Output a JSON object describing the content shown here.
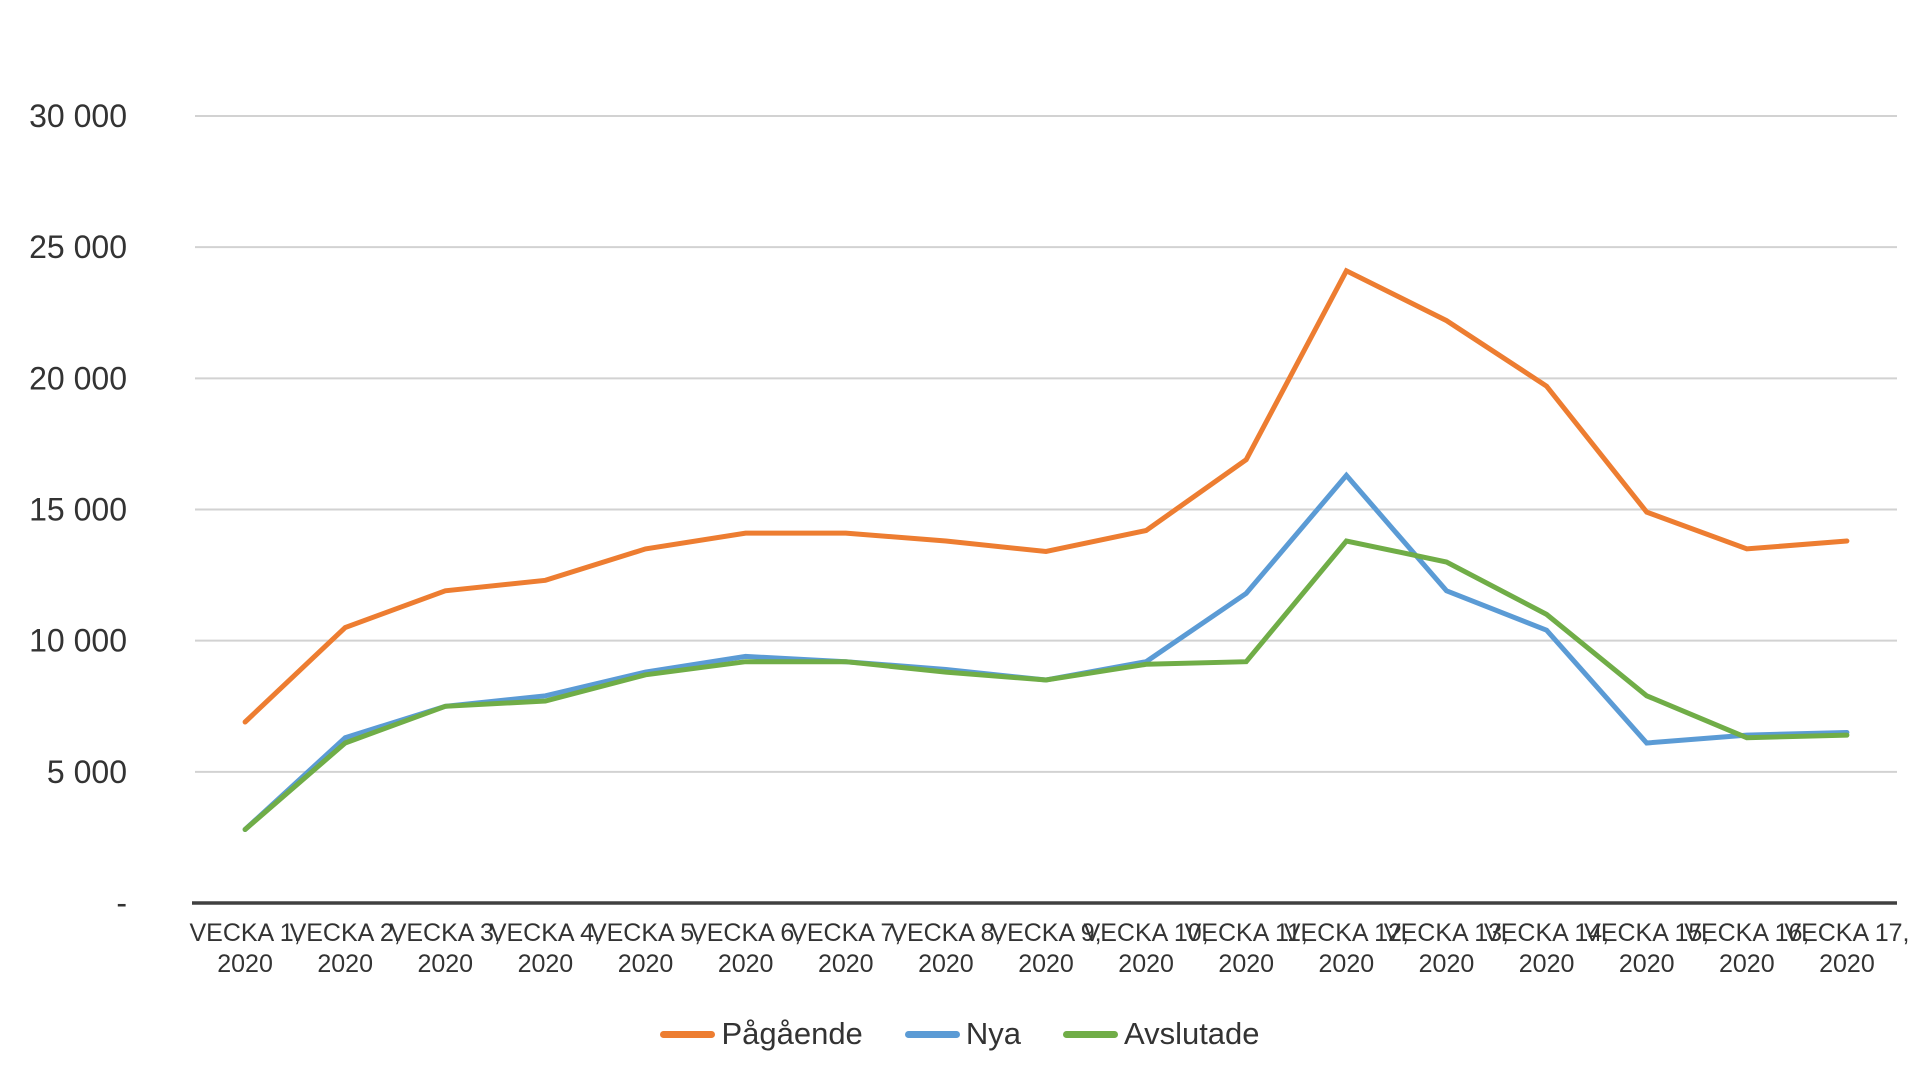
{
  "chart_data": {
    "type": "line",
    "title": "",
    "grid": true,
    "legend_position": "bottom",
    "ylim": [
      0,
      30000
    ],
    "y_ticks": [
      {
        "value": 0,
        "label": "-"
      },
      {
        "value": 5000,
        "label": "5 000"
      },
      {
        "value": 10000,
        "label": "10 000"
      },
      {
        "value": 15000,
        "label": "15 000"
      },
      {
        "value": 20000,
        "label": "20 000"
      },
      {
        "value": 25000,
        "label": "25 000"
      },
      {
        "value": 30000,
        "label": "30 000"
      }
    ],
    "categories": [
      {
        "label": "VECKA 1,",
        "sub": "2020"
      },
      {
        "label": "VECKA 2,",
        "sub": "2020"
      },
      {
        "label": "VECKA 3,",
        "sub": "2020"
      },
      {
        "label": "VECKA 4,",
        "sub": "2020"
      },
      {
        "label": "VECKA 5,",
        "sub": "2020"
      },
      {
        "label": "VECKA 6,",
        "sub": "2020"
      },
      {
        "label": "VECKA 7,",
        "sub": "2020"
      },
      {
        "label": "VECKA 8,",
        "sub": "2020"
      },
      {
        "label": "VECKA 9,",
        "sub": "2020"
      },
      {
        "label": "VECKA 10,",
        "sub": "2020"
      },
      {
        "label": "VECKA 11,",
        "sub": "2020"
      },
      {
        "label": "VECKA 12,",
        "sub": "2020"
      },
      {
        "label": "VECKA 13,",
        "sub": "2020"
      },
      {
        "label": "VECKA 14,",
        "sub": "2020"
      },
      {
        "label": "VECKA 15,",
        "sub": "2020"
      },
      {
        "label": "VECKA 16,",
        "sub": "2020"
      },
      {
        "label": "VECKA 17,",
        "sub": "2020"
      }
    ],
    "series": [
      {
        "name": "Pågående",
        "color": "#ED7D31",
        "values": [
          6900,
          10500,
          11900,
          12300,
          13500,
          14100,
          14100,
          13800,
          13400,
          14200,
          16900,
          24100,
          22200,
          19700,
          14900,
          13500,
          13800
        ]
      },
      {
        "name": "Nya",
        "color": "#5B9BD5",
        "values": [
          2800,
          6300,
          7500,
          7900,
          8800,
          9400,
          9200,
          8900,
          8500,
          9200,
          11800,
          16300,
          11900,
          10400,
          6100,
          6400,
          6500
        ]
      },
      {
        "name": "Avslutade",
        "color": "#70AD47",
        "values": [
          2800,
          6100,
          7500,
          7700,
          8700,
          9200,
          9200,
          8800,
          8500,
          9100,
          9200,
          13800,
          13000,
          11000,
          7900,
          6300,
          6400
        ]
      }
    ]
  },
  "colors": {
    "background": "#ffffff",
    "gridline": "#d2d2d2",
    "axis_line": "#404040",
    "text": "#333333"
  }
}
